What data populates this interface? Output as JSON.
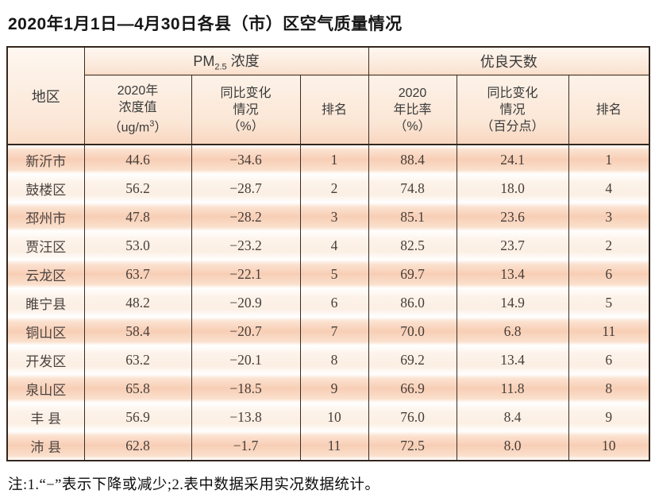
{
  "title": "2020年1月1日—4月30日各县（市）区空气质量情况",
  "table": {
    "region_header": "地区",
    "group_pm": {
      "prefix": "PM",
      "sub": "2.5",
      "suffix": " 浓度"
    },
    "group_good_days": "优良天数",
    "col_pm_value": {
      "l1": "2020年",
      "l2": "浓度值",
      "l3_pre": "（ug/m",
      "l3_sup": "3",
      "l3_post": "）"
    },
    "col_pm_change": {
      "l1": "同比变化",
      "l2": "情况",
      "l3": "（%）"
    },
    "col_pm_rank": "排名",
    "col_good_ratio": {
      "l1": "2020",
      "l2": "年比率",
      "l3": "（%）"
    },
    "col_good_change": {
      "l1": "同比变化",
      "l2": "情况",
      "l3": "（百分点）"
    },
    "col_good_rank": "排名",
    "rows": [
      {
        "region": "新沂市",
        "pm": "44.6",
        "pm_change": "−34.6",
        "pm_rank": "1",
        "ratio": "88.4",
        "ratio_change": "24.1",
        "ratio_rank": "1"
      },
      {
        "region": "鼓楼区",
        "pm": "56.2",
        "pm_change": "−28.7",
        "pm_rank": "2",
        "ratio": "74.8",
        "ratio_change": "18.0",
        "ratio_rank": "4"
      },
      {
        "region": "邳州市",
        "pm": "47.8",
        "pm_change": "−28.2",
        "pm_rank": "3",
        "ratio": "85.1",
        "ratio_change": "23.6",
        "ratio_rank": "3"
      },
      {
        "region": "贾汪区",
        "pm": "53.0",
        "pm_change": "−23.2",
        "pm_rank": "4",
        "ratio": "82.5",
        "ratio_change": "23.7",
        "ratio_rank": "2"
      },
      {
        "region": "云龙区",
        "pm": "63.7",
        "pm_change": "−22.1",
        "pm_rank": "5",
        "ratio": "69.7",
        "ratio_change": "13.4",
        "ratio_rank": "6"
      },
      {
        "region": "睢宁县",
        "pm": "48.2",
        "pm_change": "−20.9",
        "pm_rank": "6",
        "ratio": "86.0",
        "ratio_change": "14.9",
        "ratio_rank": "5"
      },
      {
        "region": "铜山区",
        "pm": "58.4",
        "pm_change": "−20.7",
        "pm_rank": "7",
        "ratio": "70.0",
        "ratio_change": "6.8",
        "ratio_rank": "11"
      },
      {
        "region": "开发区",
        "pm": "63.2",
        "pm_change": "−20.1",
        "pm_rank": "8",
        "ratio": "69.2",
        "ratio_change": "13.4",
        "ratio_rank": "6"
      },
      {
        "region": "泉山区",
        "pm": "65.8",
        "pm_change": "−18.5",
        "pm_rank": "9",
        "ratio": "66.9",
        "ratio_change": "11.8",
        "ratio_rank": "8"
      },
      {
        "region": "丰 县",
        "pm": "56.9",
        "pm_change": "−13.8",
        "pm_rank": "10",
        "ratio": "76.0",
        "ratio_change": "8.4",
        "ratio_rank": "9"
      },
      {
        "region": "沛 县",
        "pm": "62.8",
        "pm_change": "−1.7",
        "pm_rank": "11",
        "ratio": "72.5",
        "ratio_change": "8.0",
        "ratio_rank": "10"
      }
    ]
  },
  "footnote": "注:1.“−”表示下降或减少;2.表中数据采用实况数据统计。"
}
